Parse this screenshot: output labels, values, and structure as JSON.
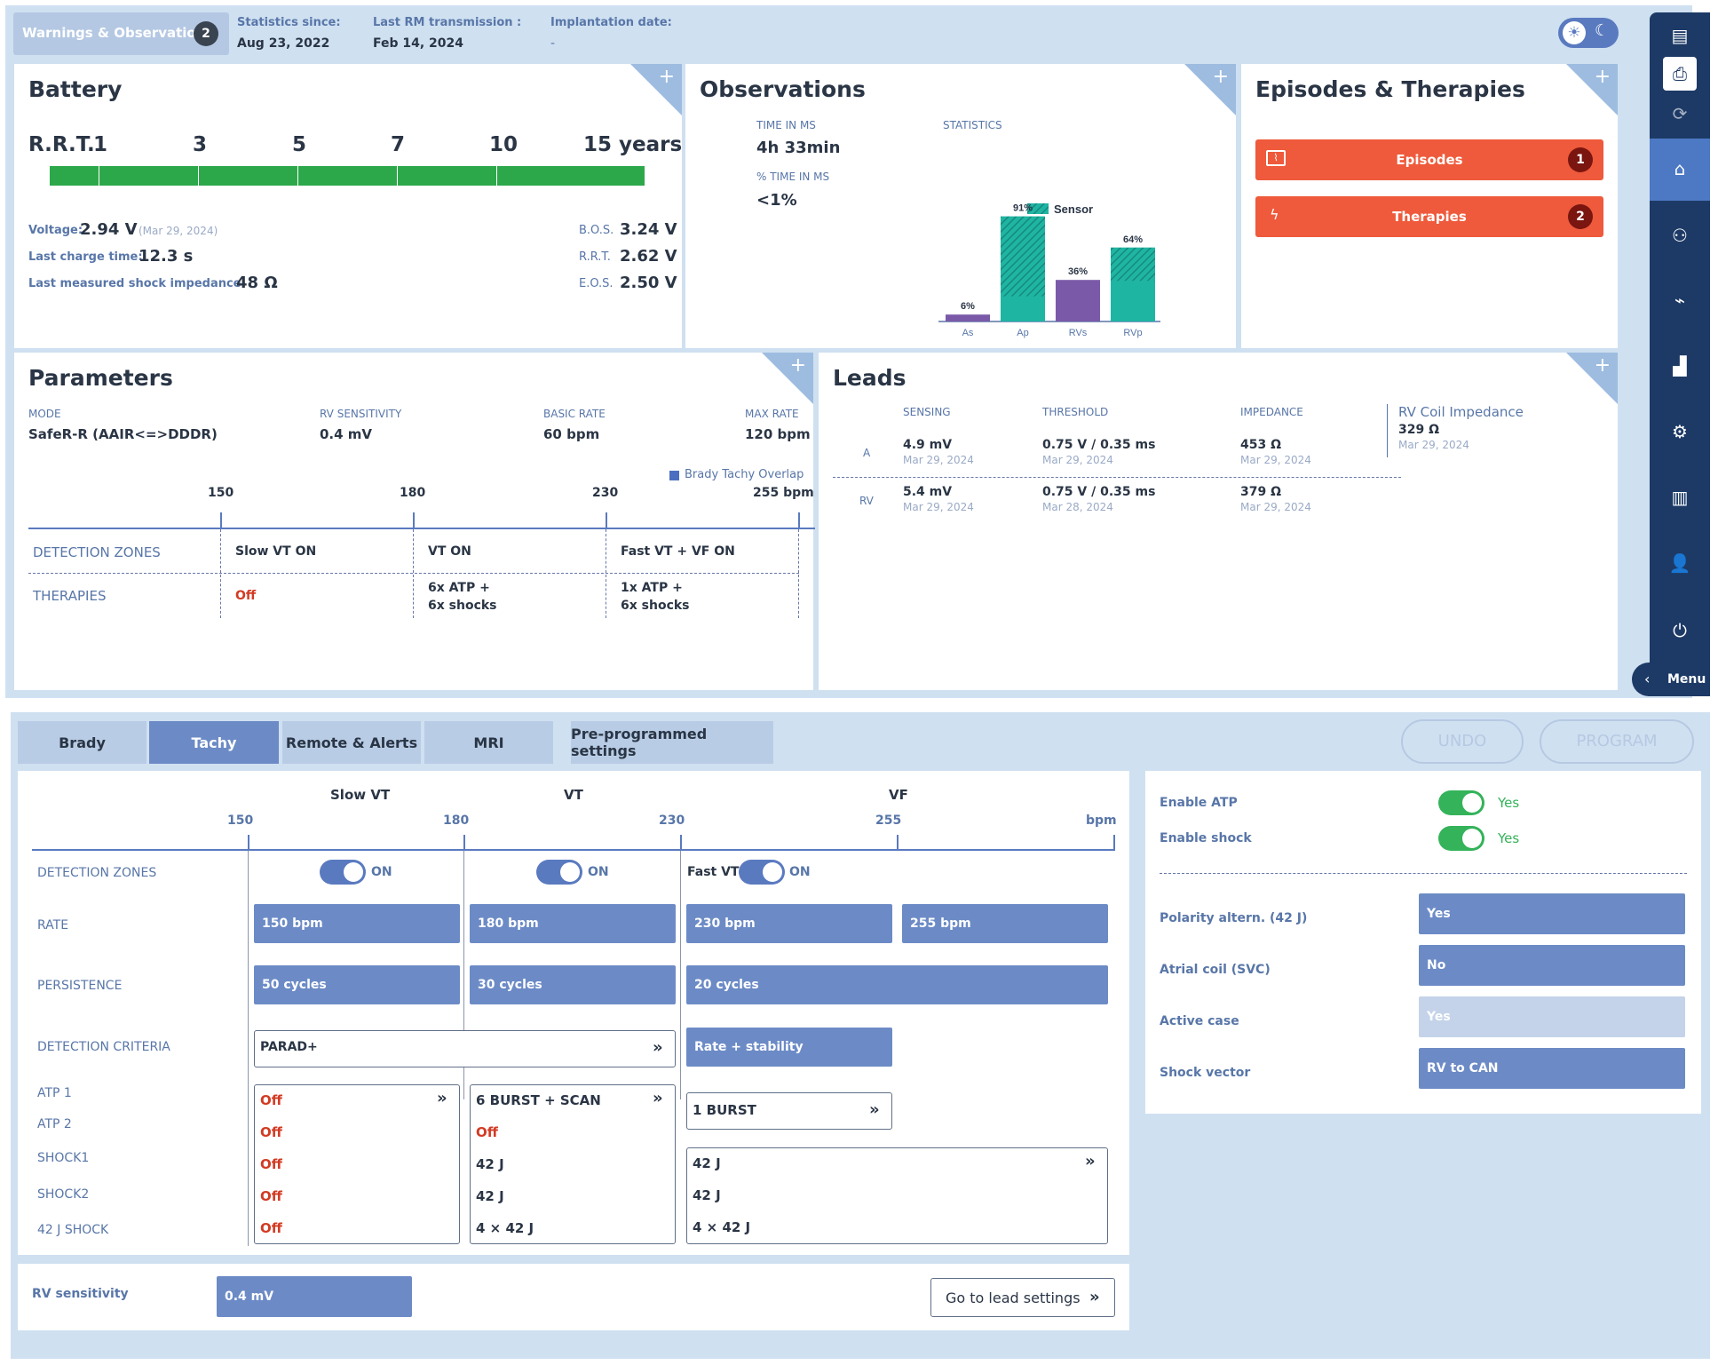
{
  "header": {
    "warnings_label": "Warnings & Observations",
    "warnings_count": "2",
    "stats_since_label": "Statistics since:",
    "stats_since_value": "Aug 23, 2022",
    "last_rm_label": "Last RM transmission :",
    "last_rm_value": "Feb 14, 2024",
    "implant_label": "Implantation date:",
    "implant_value": "-"
  },
  "battery": {
    "title": "Battery",
    "rrt_label": "R.R.T.",
    "scale": [
      "1",
      "3",
      "5",
      "7",
      "10",
      "15 years"
    ],
    "voltage_label": "Voltage:",
    "voltage_value": "2.94 V",
    "voltage_date": "(Mar 29, 2024)",
    "charge_label": "Last charge time:",
    "charge_value": "12.3 s",
    "impedance_label": "Last measured shock impedance:",
    "impedance_value": "48 Ω",
    "bos_label": "B.O.S.",
    "bos_value": "3.24 V",
    "rrt2_label": "R.R.T.",
    "rrt2_value": "2.62 V",
    "eos_label": "E.O.S.",
    "eos_value": "2.50 V"
  },
  "observations": {
    "title": "Observations",
    "time_ms_label": "TIME IN MS",
    "time_ms_value": "4h 33min",
    "pct_ms_label": "% TIME IN MS",
    "pct_ms_value": "<1%",
    "stats_label": "STATISTICS",
    "legend": "Sensor"
  },
  "chart_data": {
    "type": "bar",
    "categories": [
      "As",
      "Ap",
      "RVs",
      "RVp"
    ],
    "values": [
      6,
      91,
      36,
      64
    ],
    "value_labels": [
      "6%",
      "91%",
      "36%",
      "64%"
    ],
    "legend": "Sensor",
    "sensor_part_pct": [
      0,
      76,
      0,
      45
    ],
    "colors": {
      "sensing": "#7a5aa8",
      "paced": "#1fb5a3",
      "sensor": "#168a7d"
    }
  },
  "episodes": {
    "title": "Episodes & Therapies",
    "episodes_label": "Episodes",
    "episodes_count": "1",
    "therapies_label": "Therapies",
    "therapies_count": "2"
  },
  "parameters": {
    "title": "Parameters",
    "mode_label": "MODE",
    "mode_value": "SafeR-R (AAIR<=>DDDR)",
    "rvsens_label": "RV SENSITIVITY",
    "rvsens_value": "0.4 mV",
    "basic_label": "BASIC RATE",
    "basic_value": "60 bpm",
    "max_label": "MAX RATE",
    "max_value": "120 bpm",
    "overlap_label": "Brady Tachy Overlap",
    "ticks": [
      "150",
      "180",
      "230",
      "255 bpm"
    ],
    "zones_label": "DETECTION ZONES",
    "therapies_label": "THERAPIES",
    "zones": [
      "Slow VT ON",
      "VT ON",
      "Fast VT + VF ON"
    ],
    "therapies": [
      "Off",
      "6x ATP  +\n6x shocks",
      "1x ATP  +\n6x shocks"
    ]
  },
  "leads": {
    "title": "Leads",
    "headers": [
      "SENSING",
      "THRESHOLD",
      "IMPEDANCE"
    ],
    "rows": [
      {
        "name": "A",
        "sensing": "4.9 mV",
        "sensing_date": "Mar 29, 2024",
        "threshold": "0.75 V / 0.35 ms",
        "threshold_date": "Mar 29, 2024",
        "impedance": "453 Ω",
        "impedance_date": "Mar 29, 2024"
      },
      {
        "name": "RV",
        "sensing": "5.4 mV",
        "sensing_date": "Mar 29, 2024",
        "threshold": "0.75 V / 0.35 ms",
        "threshold_date": "Mar 28, 2024",
        "impedance": "379 Ω",
        "impedance_date": "Mar 29, 2024"
      }
    ],
    "coil_label": "RV Coil Impedance",
    "coil_value": "329 Ω",
    "coil_date": "Mar 29, 2024"
  },
  "sidebar": {
    "menu_label": "Menu"
  },
  "tabs": [
    "Brady",
    "Tachy",
    "Remote & Alerts",
    "MRI",
    "Pre-programmed settings"
  ],
  "actions": {
    "undo": "UNDO",
    "program": "PROGRAM"
  },
  "tachy": {
    "zone_titles": [
      "Slow VT",
      "VT",
      "VF"
    ],
    "ticks": [
      "150",
      "180",
      "230",
      "255",
      "bpm"
    ],
    "row_labels": [
      "DETECTION ZONES",
      "RATE",
      "PERSISTENCE",
      "DETECTION CRITERIA",
      "ATP 1",
      "ATP 2",
      "SHOCK1",
      "SHOCK2",
      "42 J SHOCK"
    ],
    "on": "ON",
    "fast_vt": "Fast VT",
    "rates": [
      "150  bpm",
      "180  bpm",
      "230  bpm",
      "255  bpm"
    ],
    "persistence": [
      "50  cycles",
      "30  cycles",
      "20  cycles"
    ],
    "criteria": [
      "PARAD+",
      "Rate + stability"
    ],
    "col1": [
      "Off",
      "Off",
      "Off",
      "Off",
      "Off"
    ],
    "col2": [
      "6 BURST + SCAN",
      "Off",
      "42 J",
      "42 J",
      "4 × 42 J"
    ],
    "col3_atp": "1 BURST",
    "col3_shock": [
      "42 J",
      "42 J",
      "4 × 42 J"
    ]
  },
  "right_panel": {
    "enable_atp": "Enable ATP",
    "enable_atp_val": "Yes",
    "enable_shock": "Enable shock",
    "enable_shock_val": "Yes",
    "polarity": "Polarity altern. (42 J)",
    "polarity_val": "Yes",
    "atrial": "Atrial coil (SVC)",
    "atrial_val": "No",
    "active": "Active case",
    "active_val": "Yes",
    "vector": "Shock vector",
    "vector_val": "RV to CAN"
  },
  "bottom": {
    "rv_label": "RV sensitivity",
    "rv_value": "0.4  mV",
    "goto": "Go to lead settings"
  }
}
